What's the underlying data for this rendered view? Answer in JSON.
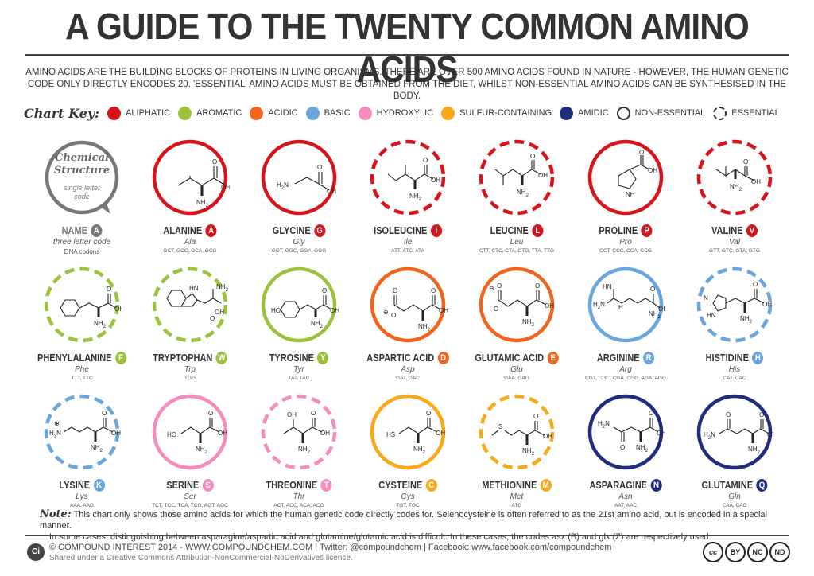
{
  "title": "A GUIDE TO THE TWENTY COMMON AMINO ACIDS",
  "intro": "AMINO ACIDS ARE THE BUILDING BLOCKS OF PROTEINS IN LIVING ORGANISMS. THERE ARE OVER 500 AMINO ACIDS FOUND IN NATURE - HOWEVER, THE HUMAN GENETIC CODE ONLY DIRECTLY ENCODES 20. 'ESSENTIAL' AMINO ACIDS MUST BE OBTAINED FROM THE DIET, WHILST NON-ESSENTIAL AMINO ACIDS CAN BE SYNTHESISED IN THE BODY.",
  "key": {
    "title": "Chart Key:",
    "items": [
      {
        "label": "ALIPHATIC",
        "color": "#d7141c"
      },
      {
        "label": "AROMATIC",
        "color": "#9cc23b"
      },
      {
        "label": "ACIDIC",
        "color": "#f0641e"
      },
      {
        "label": "BASIC",
        "color": "#6aa6dc"
      },
      {
        "label": "HYDROXYLIC",
        "color": "#f58cbe"
      },
      {
        "label": "SULFUR-CONTAINING",
        "color": "#f7a81b"
      },
      {
        "label": "AMIDIC",
        "color": "#1f2d7c"
      },
      {
        "label": "NON-ESSENTIAL",
        "style": "solid"
      },
      {
        "label": "ESSENTIAL",
        "style": "dashed"
      }
    ]
  },
  "legend_cell": {
    "heading1": "Chemical",
    "heading2": "Structure",
    "sub1": "single letter",
    "sub2": "code",
    "name": "NAME",
    "letter": "A",
    "abbr": "three letter code",
    "codons": "DNA codons"
  },
  "amino_acids": [
    {
      "name": "ALANINE",
      "letter": "A",
      "abbr": "Ala",
      "codons": "GCT, GCC, GCA, GCG",
      "color": "#d7141c",
      "essential": false,
      "struct": "alanine"
    },
    {
      "name": "GLYCINE",
      "letter": "G",
      "abbr": "Gly",
      "codons": "GGT, GGC, GGA, GGG",
      "color": "#d7141c",
      "essential": false,
      "struct": "glycine"
    },
    {
      "name": "ISOLEUCINE",
      "letter": "I",
      "abbr": "Ile",
      "codons": "ATT, ATC, ATA",
      "color": "#d7141c",
      "essential": true,
      "struct": "isoleucine"
    },
    {
      "name": "LEUCINE",
      "letter": "L",
      "abbr": "Leu",
      "codons": "CTT, CTC, CTA, CTG, TTA, TTG",
      "color": "#d7141c",
      "essential": true,
      "struct": "leucine"
    },
    {
      "name": "PROLINE",
      "letter": "P",
      "abbr": "Pro",
      "codons": "CCT, CCC, CCA, CCG",
      "color": "#d7141c",
      "essential": false,
      "struct": "proline"
    },
    {
      "name": "VALINE",
      "letter": "V",
      "abbr": "Val",
      "codons": "GTT, GTC, GTA, GTG",
      "color": "#d7141c",
      "essential": true,
      "struct": "valine"
    },
    {
      "name": "PHENYLALANINE",
      "letter": "F",
      "abbr": "Phe",
      "codons": "TTT, TTC",
      "color": "#9cc23b",
      "essential": true,
      "struct": "phenylalanine"
    },
    {
      "name": "TRYPTOPHAN",
      "letter": "W",
      "abbr": "Trp",
      "codons": "TGG",
      "color": "#9cc23b",
      "essential": true,
      "struct": "tryptophan"
    },
    {
      "name": "TYROSINE",
      "letter": "Y",
      "abbr": "Tyr",
      "codons": "TAT, TAC",
      "color": "#9cc23b",
      "essential": false,
      "struct": "tyrosine"
    },
    {
      "name": "ASPARTIC ACID",
      "letter": "D",
      "abbr": "Asp",
      "codons": "GAT, GAC",
      "color": "#f0641e",
      "essential": false,
      "struct": "aspartic"
    },
    {
      "name": "GLUTAMIC ACID",
      "letter": "E",
      "abbr": "Glu",
      "codons": "GAA, GAG",
      "color": "#f0641e",
      "essential": false,
      "struct": "glutamic"
    },
    {
      "name": "ARGININE",
      "letter": "R",
      "abbr": "Arg",
      "codons": "CGT, CGC, CGA, CGG, AGA, AGG",
      "color": "#6aa6dc",
      "essential": false,
      "struct": "arginine"
    },
    {
      "name": "HISTIDINE",
      "letter": "H",
      "abbr": "His",
      "codons": "CAT, CAC",
      "color": "#6aa6dc",
      "essential": true,
      "struct": "histidine"
    },
    {
      "name": "LYSINE",
      "letter": "K",
      "abbr": "Lys",
      "codons": "AAA, AAG",
      "color": "#6aa6dc",
      "essential": true,
      "struct": "lysine"
    },
    {
      "name": "SERINE",
      "letter": "S",
      "abbr": "Ser",
      "codons": "TCT, TCC, TCA, TCG, AGT, AGC",
      "color": "#f58cbe",
      "essential": false,
      "struct": "serine"
    },
    {
      "name": "THREONINE",
      "letter": "T",
      "abbr": "Thr",
      "codons": "ACT, ACC, ACA, ACG",
      "color": "#f58cbe",
      "essential": true,
      "struct": "threonine"
    },
    {
      "name": "CYSTEINE",
      "letter": "C",
      "abbr": "Cys",
      "codons": "TGT, TGC",
      "color": "#f7a81b",
      "essential": false,
      "struct": "cysteine"
    },
    {
      "name": "METHIONINE",
      "letter": "M",
      "abbr": "Met",
      "codons": "ATG",
      "color": "#f7a81b",
      "essential": true,
      "struct": "methionine"
    },
    {
      "name": "ASPARAGINE",
      "letter": "N",
      "abbr": "Asn",
      "codons": "AAT, AAC",
      "color": "#1f2d7c",
      "essential": false,
      "struct": "asparagine"
    },
    {
      "name": "GLUTAMINE",
      "letter": "Q",
      "abbr": "Gln",
      "codons": "CAA, CAG",
      "color": "#1f2d7c",
      "essential": false,
      "struct": "glutamine"
    }
  ],
  "note": {
    "label": "Note:",
    "line1": "This chart only shows those amino acids for which the human genetic code directly codes for. Selenocysteine is often referred to as the 21st amino acid, but is encoded in a special manner.",
    "line2": "In some cases, distinguishing between asparagine/aspartic acid and glutamine/glutamic acid is difficult. In these cases, the codes asx (B) and glx (Z) are respectively used."
  },
  "footer": {
    "logo": "Ci",
    "line1": "© COMPOUND INTEREST 2014 - WWW.COMPOUNDCHEM.COM | Twitter: @compoundchem | Facebook: www.facebook.com/compoundchem",
    "line2": "Shared under a Creative Commons Attribution-NonCommercial-NoDerivatives licence.",
    "license_badges": [
      "cc",
      "BY",
      "NC",
      "ND"
    ]
  }
}
